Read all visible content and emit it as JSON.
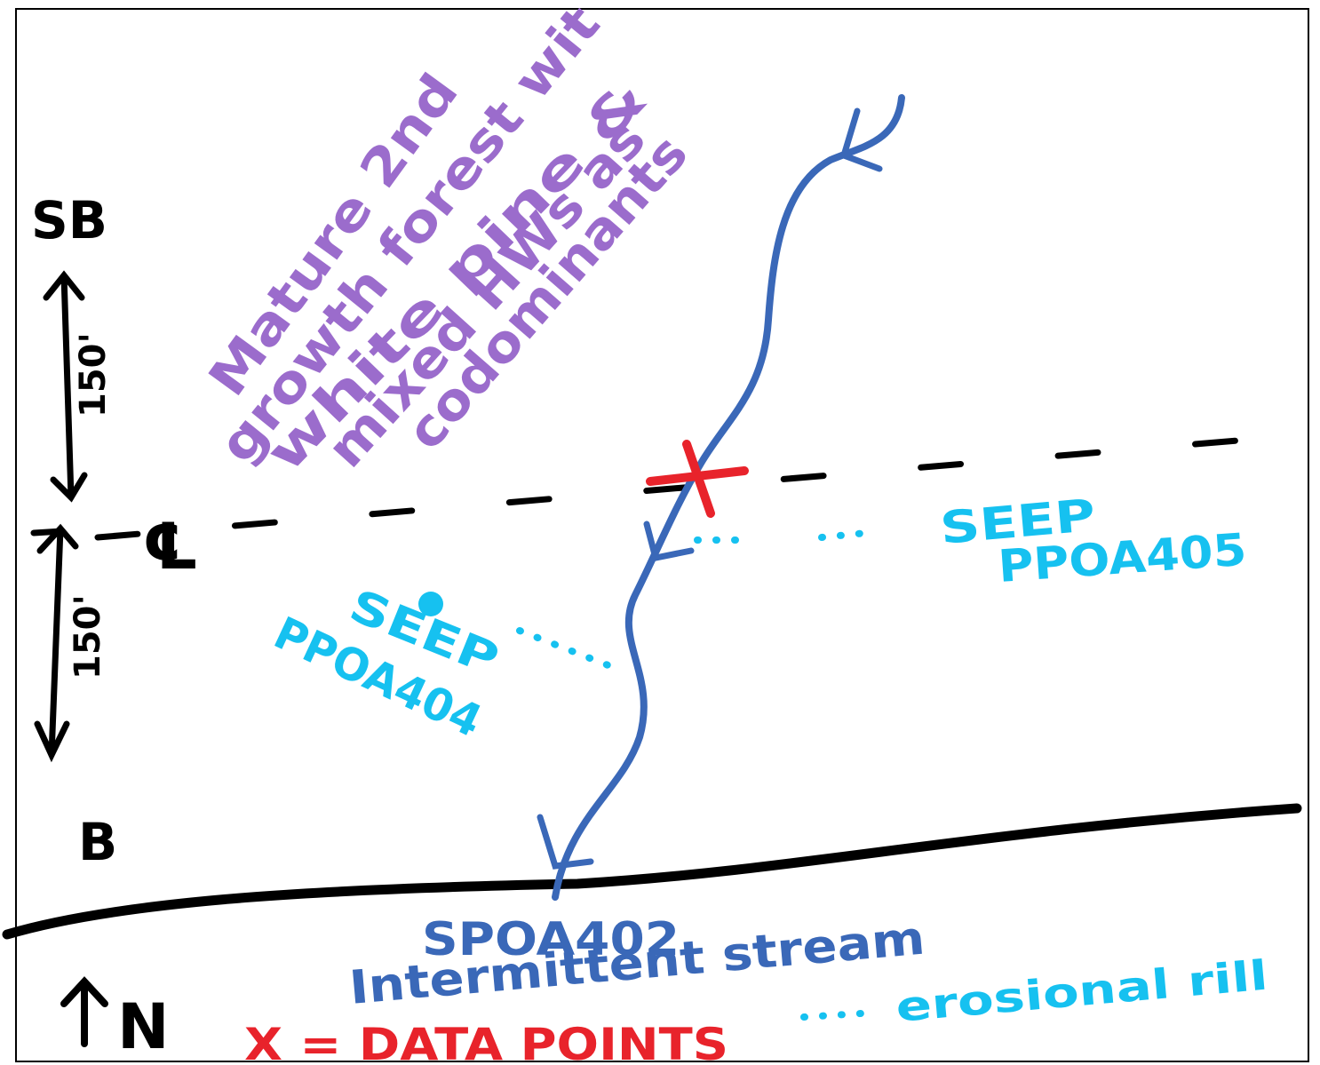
{
  "labels": {
    "sb": "SB",
    "b": "B",
    "centerline": "℄",
    "north": "N",
    "dist_upper": "150'",
    "dist_lower": "150'"
  },
  "forest_note": [
    "Mature 2nd",
    "growth forest wit",
    "white pine &",
    "mixed HWs as",
    "codominants"
  ],
  "seeps": [
    {
      "label": "SEEP",
      "id": "PPOA405"
    },
    {
      "label": "SEEP",
      "id": "PPOA404"
    }
  ],
  "stream": {
    "id": "SPOA402",
    "label": "Intermittent stream"
  },
  "legend": {
    "rill": "erosional rill",
    "data_points": "X = DATA POINTS"
  }
}
